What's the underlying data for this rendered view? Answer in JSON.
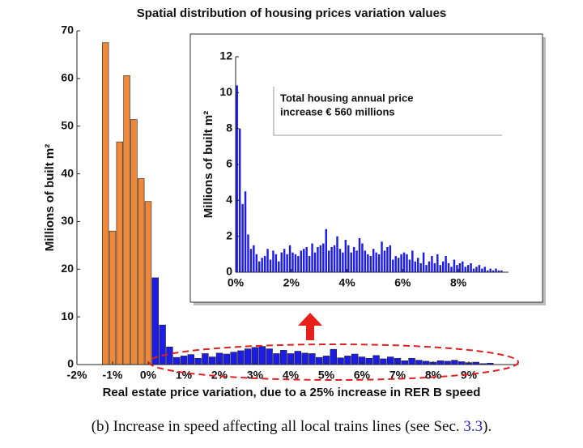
{
  "chart_data": [
    {
      "type": "histogram",
      "title": "Spatial distribution of housing prices variation values",
      "xlabel": "Real estate price variation, due to a 25% increase in RER B speed",
      "ylabel": "Millions of built m²",
      "xlim": [
        -2,
        10.4
      ],
      "ylim": [
        0,
        70
      ],
      "xticks": [
        {
          "value": -2,
          "label": "-2%"
        },
        {
          "value": -1,
          "label": "-1%"
        },
        {
          "value": 0,
          "label": "0%"
        },
        {
          "value": 1,
          "label": "1%"
        },
        {
          "value": 2,
          "label": "2%"
        },
        {
          "value": 3,
          "label": "3%"
        },
        {
          "value": 4,
          "label": "4%"
        },
        {
          "value": 5,
          "label": "5%"
        },
        {
          "value": 6,
          "label": "6%"
        },
        {
          "value": 7,
          "label": "7%"
        },
        {
          "value": 8,
          "label": "8%"
        },
        {
          "value": 9,
          "label": "9%"
        }
      ],
      "yticks": [
        0,
        10,
        20,
        30,
        40,
        50,
        60,
        70
      ],
      "series": [
        {
          "color": "#f0883a",
          "bins": [
            -1.3,
            -1.1,
            -0.9,
            -0.7,
            -0.5,
            -0.3,
            -0.1,
            0.1
          ],
          "values": [
            67.5,
            28,
            46.7,
            60.6,
            51.4,
            39,
            34.2
          ]
        },
        {
          "color": "#1c1ce6",
          "bins": [
            0.1,
            0.3,
            0.5,
            0.7,
            0.9,
            1.1,
            1.3,
            1.5,
            1.7,
            1.9,
            2.1,
            2.3,
            2.5,
            2.7,
            2.9,
            3.1,
            3.3,
            3.5,
            3.7,
            3.9,
            4.1,
            4.3,
            4.5,
            4.7,
            4.9,
            5.1,
            5.3,
            5.5,
            5.7,
            5.9,
            6.1,
            6.3,
            6.5,
            6.7,
            6.9,
            7.1,
            7.3,
            7.5,
            7.7,
            7.9,
            8.1,
            8.3,
            8.5,
            8.7,
            8.9,
            9.1,
            9.3,
            9.5,
            9.7
          ],
          "values": [
            18.2,
            8.3,
            3.7,
            1.5,
            1.8,
            2.1,
            1.3,
            2.3,
            1.6,
            2.4,
            2.2,
            2.6,
            2.9,
            3.3,
            3.6,
            3.8,
            3.3,
            2.3,
            3.0,
            2.3,
            2.8,
            2.4,
            2.3,
            1.5,
            1.8,
            3.2,
            1.4,
            1.8,
            2.2,
            1.6,
            1.3,
            1.9,
            1.2,
            1.6,
            1.3,
            0.8,
            1.3,
            0.9,
            0.7,
            0.5,
            0.8,
            0.7,
            0.9,
            0.6,
            0.4,
            0.5,
            0.2,
            0.3
          ]
        }
      ]
    },
    {
      "type": "histogram",
      "ylabel": "Millions of built m²",
      "annotation": [
        "Total housing annual price",
        "increase € 560 millions"
      ],
      "xlim": [
        0,
        9.8
      ],
      "ylim": [
        0,
        12
      ],
      "xticks": [
        {
          "value": 0,
          "label": "0%"
        },
        {
          "value": 2,
          "label": "2%"
        },
        {
          "value": 4,
          "label": "4%"
        },
        {
          "value": 6,
          "label": "6%"
        },
        {
          "value": 8,
          "label": "8%"
        }
      ],
      "yticks": [
        0,
        2,
        4,
        6,
        8,
        10,
        12
      ],
      "series": [
        {
          "color": "#1c1ce6",
          "bins": [
            0,
            0.1,
            0.2,
            0.3,
            0.4,
            0.5,
            0.6,
            0.7,
            0.8,
            0.9,
            1,
            1.1,
            1.2,
            1.3,
            1.4,
            1.5,
            1.6,
            1.7,
            1.8,
            1.9,
            2,
            2.1,
            2.2,
            2.3,
            2.4,
            2.5,
            2.6,
            2.7,
            2.8,
            2.9,
            3,
            3.1,
            3.2,
            3.3,
            3.4,
            3.5,
            3.6,
            3.7,
            3.8,
            3.9,
            4,
            4.1,
            4.2,
            4.3,
            4.4,
            4.5,
            4.6,
            4.7,
            4.8,
            4.9,
            5,
            5.1,
            5.2,
            5.3,
            5.4,
            5.5,
            5.6,
            5.7,
            5.8,
            5.9,
            6,
            6.1,
            6.2,
            6.3,
            6.4,
            6.5,
            6.6,
            6.7,
            6.8,
            6.9,
            7,
            7.1,
            7.2,
            7.3,
            7.4,
            7.5,
            7.6,
            7.7,
            7.8,
            7.9,
            8,
            8.1,
            8.2,
            8.3,
            8.4,
            8.5,
            8.6,
            8.7,
            8.8,
            8.9,
            9,
            9.1,
            9.2,
            9.3,
            9.4,
            9.5,
            9.6
          ],
          "values": [
            10.4,
            8.0,
            3.8,
            4.5,
            2.1,
            1.3,
            1.5,
            1.0,
            0.6,
            0.8,
            0.9,
            1.3,
            0.7,
            1.2,
            1.0,
            0.6,
            1.1,
            1.3,
            1.0,
            1.5,
            1.1,
            1.0,
            0.9,
            1.2,
            1.3,
            1.4,
            0.9,
            1.6,
            1.1,
            1.4,
            1.5,
            1.6,
            2.4,
            1.2,
            1.4,
            1.5,
            2.0,
            1.3,
            1.1,
            1.8,
            1.5,
            1.1,
            1.4,
            1.2,
            1.9,
            1.6,
            1.2,
            1.0,
            0.9,
            1.3,
            1.1,
            1.0,
            1.7,
            1.2,
            1.4,
            1.5,
            0.7,
            0.9,
            0.8,
            1.0,
            1.1,
            1.0,
            0.7,
            1.2,
            0.6,
            0.8,
            0.5,
            1.1,
            0.4,
            0.6,
            0.9,
            0.5,
            1.0,
            0.4,
            0.6,
            0.9,
            0.5,
            0.3,
            0.7,
            0.4,
            0.5,
            0.6,
            0.3,
            0.4,
            0.5,
            0.2,
            0.3,
            0.4,
            0.2,
            0.3,
            0.1,
            0.2,
            0.1,
            0.2,
            0.1,
            0.1
          ]
        }
      ]
    }
  ],
  "caption": {
    "text": "(b) Increase in speed affecting all local trains lines (see Sec. ",
    "ref": "3.3",
    "end": ")."
  }
}
